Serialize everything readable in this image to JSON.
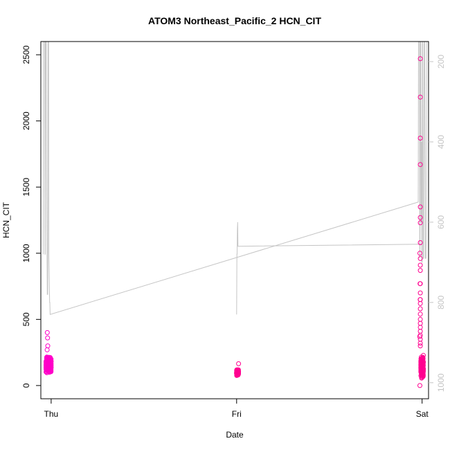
{
  "chart_data": {
    "type": "scatter",
    "title": "ATOM3 Northeast_Pacific_2 HCN_CIT",
    "xlabel": "Date",
    "ylabel": "HCN_CIT",
    "x_ticks": [
      "Thu",
      "Fri",
      "Sat"
    ],
    "x_range": [
      "Wed 22:40",
      "Sat 00:50"
    ],
    "ylim": [
      -100,
      2600
    ],
    "y_ticks": [
      0,
      500,
      1000,
      1500,
      2000,
      2500
    ],
    "y2_ticks": [
      200,
      400,
      600,
      800,
      1000
    ],
    "y2_range": [
      1040,
      150
    ],
    "y2_reversed": true,
    "y2_color": "#c4c4c4",
    "grid": false,
    "series": [
      {
        "type": "scatter",
        "color": "#ff00c8",
        "marker": "open-circle",
        "clusters": [
          {
            "x_start": "Wed 23:20",
            "x_end": "Thu 00:00",
            "y_low": 90,
            "y_high": 230
          }
        ],
        "outliers": [
          {
            "x": "Wed 23:30",
            "y": 400
          },
          {
            "x": "Wed 23:32",
            "y": 360
          },
          {
            "x": "Wed 23:34",
            "y": 300
          },
          {
            "x": "Wed 23:29",
            "y": 270
          }
        ]
      },
      {
        "type": "scatter",
        "color": "#ff0090",
        "marker": "open-circle",
        "clusters": [
          {
            "x_start": "Fri 00:00",
            "x_end": "Fri 00:15",
            "y_low": 70,
            "y_high": 130
          },
          {
            "x_start": "Fri 23:50",
            "x_end": "Sat 00:10",
            "y_low": 40,
            "y_high": 240
          }
        ],
        "outliers": [
          {
            "x": "Fri 00:15",
            "y": 165
          },
          {
            "x": "Fri 23:43",
            "y": 1000
          },
          {
            "x": "Fri 23:45",
            "y": 650
          },
          {
            "x": "Fri 23:44",
            "y": 770
          },
          {
            "x": "Fri 23:41",
            "y": 370
          },
          {
            "x": "Fri 23:46",
            "y": 2470
          },
          {
            "x": "Fri 23:46",
            "y": 2180
          },
          {
            "x": "Fri 23:46",
            "y": 1870
          },
          {
            "x": "Fri 23:46",
            "y": 1670
          },
          {
            "x": "Fri 23:46",
            "y": 1350
          },
          {
            "x": "Fri 23:46",
            "y": 1270
          },
          {
            "x": "Fri 23:46",
            "y": 1230
          },
          {
            "x": "Fri 23:46",
            "y": 1080
          },
          {
            "x": "Fri 23:46",
            "y": 960
          },
          {
            "x": "Fri 23:46",
            "y": 910
          },
          {
            "x": "Fri 23:46",
            "y": 870
          },
          {
            "x": "Fri 23:46",
            "y": 770
          },
          {
            "x": "Fri 23:46",
            "y": 700
          },
          {
            "x": "Fri 23:46",
            "y": 650
          },
          {
            "x": "Fri 23:46",
            "y": 620
          },
          {
            "x": "Fri 23:46",
            "y": 580
          },
          {
            "x": "Fri 23:46",
            "y": 540
          },
          {
            "x": "Fri 23:46",
            "y": 500
          },
          {
            "x": "Fri 23:46",
            "y": 470
          },
          {
            "x": "Fri 23:46",
            "y": 440
          },
          {
            "x": "Fri 23:46",
            "y": 410
          },
          {
            "x": "Fri 23:46",
            "y": 380
          },
          {
            "x": "Fri 23:46",
            "y": 350
          },
          {
            "x": "Fri 23:46",
            "y": 320
          },
          {
            "x": "Fri 23:46",
            "y": 300
          },
          {
            "x": "Fri 23:43",
            "y": 0
          }
        ]
      },
      {
        "type": "line",
        "color": "#c4c4c4",
        "axis": "right",
        "points": [
          [
            "Wed 22:58",
            620
          ],
          [
            "Wed 22:58",
            680
          ],
          [
            "Wed 23:00",
            150
          ],
          [
            "Wed 23:10",
            150
          ],
          [
            "Wed 23:12",
            680
          ],
          [
            "Wed 23:14",
            680
          ],
          [
            "Wed 23:16",
            150
          ],
          [
            "Wed 23:22",
            150
          ],
          [
            "Wed 23:25",
            480
          ],
          [
            "Wed 23:30",
            780
          ],
          [
            "Wed 23:33",
            780
          ],
          [
            "Wed 23:36",
            150
          ],
          [
            "Wed 23:40",
            150
          ],
          [
            "Wed 23:42",
            680
          ],
          [
            "Wed 23:48",
            800
          ],
          [
            "Wed 23:50",
            800
          ],
          [
            "Wed 23:52",
            830
          ],
          [
            "Fri 23:30",
            550
          ],
          [
            "Fri 23:32",
            150
          ],
          [
            "Fri 23:40",
            150
          ],
          [
            "Fri 23:42",
            690
          ],
          [
            "Fri 23:44",
            680
          ],
          [
            "Fri 23:46",
            150
          ],
          [
            "Fri 23:48",
            150
          ],
          [
            "Fri 23:50",
            150
          ],
          [
            "Fri 23:52",
            600
          ],
          [
            "Fri 23:54",
            600
          ],
          [
            "Fri 23:56",
            400
          ],
          [
            "Fri 23:58",
            700
          ],
          [
            "Sat 00:00",
            700
          ],
          [
            "Sat 00:02",
            150
          ],
          [
            "Sat 00:05",
            150
          ],
          [
            "Sat 00:08",
            690
          ],
          [
            "Sat 00:12",
            690
          ],
          [
            "Sat 00:16",
            150
          ],
          [
            "Sat 00:20",
            150
          ],
          [
            "Sat 00:25",
            690
          ],
          [
            "Sat 00:30",
            690
          ],
          [
            "Sat 00:35",
            150
          ]
        ],
        "segment2": [
          [
            "Fri 00:00",
            830
          ],
          [
            "Fri 00:02",
            680
          ],
          [
            "Fri 00:04",
            680
          ],
          [
            "Fri 00:06",
            620
          ],
          [
            "Fri 00:08",
            600
          ],
          [
            "Fri 00:10",
            660
          ],
          [
            "Fri 00:12",
            660
          ],
          [
            "Fri 23:50",
            655
          ],
          [
            "Sat 00:00",
            655
          ]
        ]
      }
    ]
  }
}
